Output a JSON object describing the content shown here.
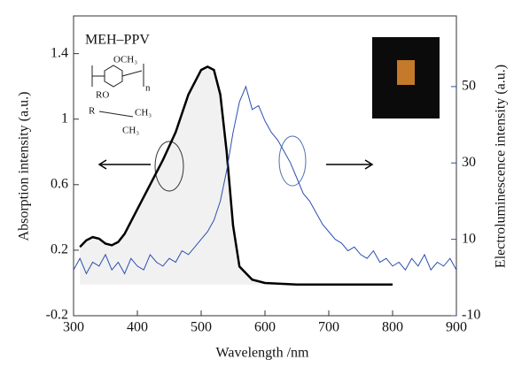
{
  "chart_data": {
    "type": "line",
    "xlabel": "Wavelength /nm",
    "ylabel": "Absorption intensity (a.u.)",
    "y2label": "Electroluminescence intensity (a.u.)",
    "annotations": [
      "MEH–PPV"
    ],
    "structure_labels": [
      "OCH₃",
      "RO",
      "n",
      "R",
      "CH₃",
      "CH₃"
    ],
    "xlim": [
      300,
      900
    ],
    "xticks": [
      300,
      400,
      500,
      600,
      700,
      800,
      900
    ],
    "ylim": [
      -0.2,
      1.63
    ],
    "yticks": [
      -0.2,
      0.2,
      0.6,
      1.0,
      1.4
    ],
    "y2lim": [
      -10,
      68.5
    ],
    "y2ticks": [
      -10,
      10,
      30,
      50
    ],
    "series": [
      {
        "color": "#000000",
        "fill": "#f1f1f1",
        "x": [
          310,
          320,
          330,
          340,
          350,
          360,
          370,
          380,
          400,
          420,
          440,
          460,
          480,
          500,
          510,
          520,
          530,
          540,
          550,
          560,
          580,
          600,
          650,
          700,
          800
        ],
        "values": [
          0.22,
          0.26,
          0.28,
          0.27,
          0.24,
          0.23,
          0.25,
          0.3,
          0.45,
          0.6,
          0.75,
          0.92,
          1.15,
          1.3,
          1.32,
          1.3,
          1.15,
          0.8,
          0.35,
          0.1,
          0.02,
          0.0,
          -0.01,
          -0.01,
          -0.01
        ]
      },
      {
        "color": "#2d4fb0",
        "axis": "y2",
        "x": [
          300,
          310,
          320,
          330,
          340,
          350,
          360,
          370,
          380,
          390,
          400,
          410,
          420,
          430,
          440,
          450,
          460,
          470,
          480,
          490,
          500,
          510,
          520,
          530,
          540,
          550,
          560,
          570,
          580,
          590,
          600,
          610,
          620,
          630,
          640,
          650,
          660,
          670,
          680,
          690,
          700,
          710,
          720,
          730,
          740,
          750,
          760,
          770,
          780,
          790,
          800,
          810,
          820,
          830,
          840,
          850,
          860,
          870,
          880,
          890,
          900
        ],
        "values": [
          2,
          5,
          1,
          4,
          3,
          6,
          2,
          4,
          1,
          5,
          3,
          2,
          6,
          4,
          3,
          5,
          4,
          7,
          6,
          8,
          10,
          12,
          15,
          20,
          28,
          38,
          46,
          50,
          44,
          45,
          41,
          38,
          36,
          33,
          30,
          26,
          22,
          20,
          17,
          14,
          12,
          10,
          9,
          7,
          8,
          6,
          5,
          7,
          4,
          5,
          3,
          4,
          2,
          5,
          3,
          6,
          2,
          4,
          3,
          5,
          2
        ]
      }
    ]
  }
}
